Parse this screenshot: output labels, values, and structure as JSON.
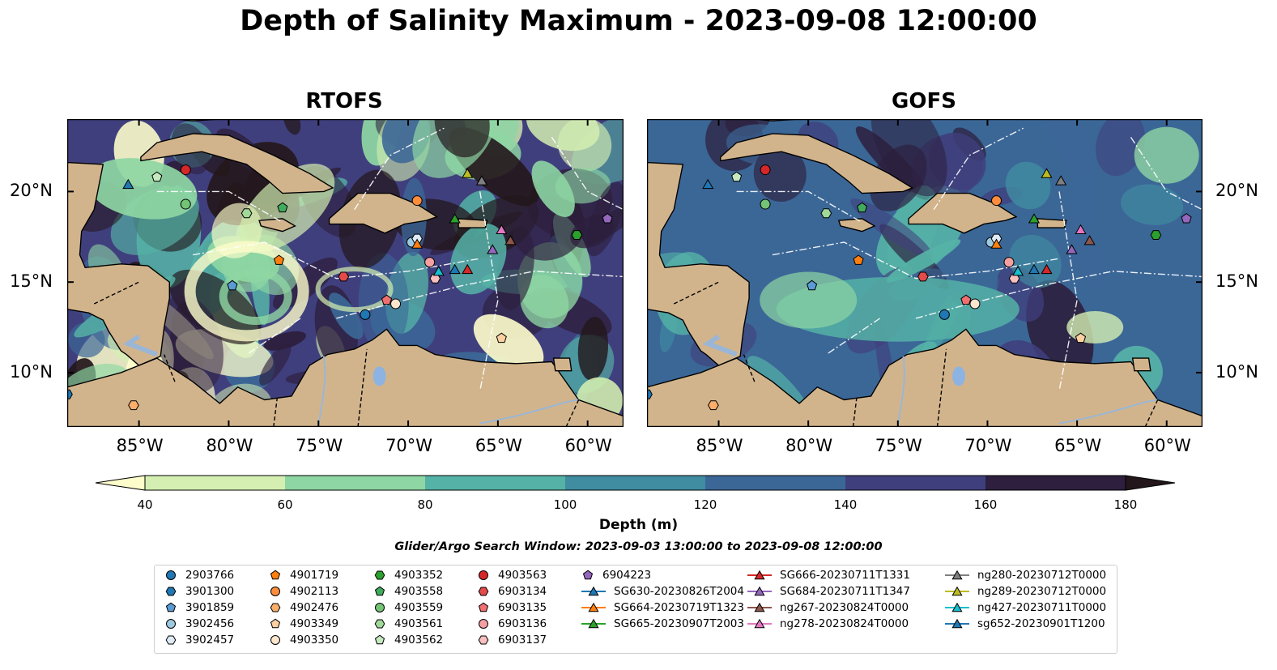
{
  "title": "Depth of Salinity Maximum - 2023-09-08 12:00:00",
  "panels": [
    {
      "title": "RTOFS"
    },
    {
      "title": "GOFS"
    }
  ],
  "axes": {
    "lon_ticks": [
      "85°W",
      "80°W",
      "75°W",
      "70°W",
      "65°W",
      "60°W"
    ],
    "lat_ticks": [
      "20°N",
      "15°N",
      "10°N"
    ],
    "lon_range": [
      -89,
      -58
    ],
    "lat_range": [
      7,
      24
    ]
  },
  "colorbar": {
    "label": "Depth (m)",
    "ticks": [
      "40",
      "60",
      "80",
      "100",
      "120",
      "140",
      "160",
      "180"
    ],
    "colors": [
      "#fdfdcb",
      "#d4efb1",
      "#8ed6a3",
      "#55b2a6",
      "#408ca1",
      "#3b6797",
      "#403f7d",
      "#2d1f3d",
      "#23171b"
    ],
    "extend": "both"
  },
  "search_window": "Glider/Argo Search Window: 2023-09-03 13:00:00 to 2023-09-08 12:00:00",
  "land_color": "#d2b48c",
  "legend": [
    {
      "label": "2903766",
      "marker": "circle",
      "color": "#1f77b4"
    },
    {
      "label": "3901300",
      "marker": "hexagon",
      "color": "#1f77b4"
    },
    {
      "label": "3901859",
      "marker": "pentagon",
      "color": "#5b9bd5"
    },
    {
      "label": "3902456",
      "marker": "circle",
      "color": "#9ecae1"
    },
    {
      "label": "3902457",
      "marker": "hexagon",
      "color": "#deebf7"
    },
    {
      "label": "4901719",
      "marker": "pentagon",
      "color": "#ff7f0e"
    },
    {
      "label": "4902113",
      "marker": "circle",
      "color": "#fd8d3c"
    },
    {
      "label": "4902476",
      "marker": "hexagon",
      "color": "#fdae6b"
    },
    {
      "label": "4903349",
      "marker": "pentagon",
      "color": "#fdd0a2"
    },
    {
      "label": "4903350",
      "marker": "circle",
      "color": "#fee6ce"
    },
    {
      "label": "4903352",
      "marker": "hexagon",
      "color": "#2ca02c"
    },
    {
      "label": "4903558",
      "marker": "pentagon",
      "color": "#41ab5d"
    },
    {
      "label": "4903559",
      "marker": "circle",
      "color": "#74c476"
    },
    {
      "label": "4903561",
      "marker": "hexagon",
      "color": "#a1d99b"
    },
    {
      "label": "4903562",
      "marker": "pentagon",
      "color": "#c7e9c0"
    },
    {
      "label": "4903563",
      "marker": "circle",
      "color": "#d62728"
    },
    {
      "label": "6903134",
      "marker": "hexagon",
      "color": "#e34a4a"
    },
    {
      "label": "6903135",
      "marker": "pentagon",
      "color": "#f07070"
    },
    {
      "label": "6903136",
      "marker": "circle",
      "color": "#f4a0a0"
    },
    {
      "label": "6903137",
      "marker": "hexagon",
      "color": "#f8c0c0"
    },
    {
      "label": "6904223",
      "marker": "pentagon",
      "color": "#9467bd"
    },
    {
      "label": "SG630-20230826T2004",
      "marker": "triangle",
      "color": "#1f77b4"
    },
    {
      "label": "SG664-20230719T1323",
      "marker": "triangle",
      "color": "#ff7f0e"
    },
    {
      "label": "SG665-20230907T2003",
      "marker": "triangle",
      "color": "#2ca02c"
    },
    {
      "label": "SG666-20230711T1331",
      "marker": "triangle",
      "color": "#d62728"
    },
    {
      "label": "SG684-20230711T1347",
      "marker": "triangle",
      "color": "#9467bd"
    },
    {
      "label": "ng267-20230824T0000",
      "marker": "triangle",
      "color": "#8c564b"
    },
    {
      "label": "ng278-20230824T0000",
      "marker": "triangle",
      "color": "#e377c2"
    },
    {
      "label": "ng280-20230712T0000",
      "marker": "triangle",
      "color": "#7f7f7f"
    },
    {
      "label": "ng289-20230712T0000",
      "marker": "triangle",
      "color": "#bcbd22"
    },
    {
      "label": "ng427-20230711T0000",
      "marker": "triangle",
      "color": "#17becf"
    },
    {
      "label": "sg652-20230901T1200",
      "marker": "triangle",
      "color": "#1f77b4"
    }
  ],
  "observations": [
    {
      "id": "2903766",
      "lon": -72.4,
      "lat": 13.2
    },
    {
      "id": "3901300",
      "lon": -89.0,
      "lat": 8.8
    },
    {
      "id": "3901859",
      "lon": -79.8,
      "lat": 14.8
    },
    {
      "id": "3902456",
      "lon": -69.8,
      "lat": 17.2
    },
    {
      "id": "3902457",
      "lon": -69.5,
      "lat": 17.4
    },
    {
      "id": "4901719",
      "lon": -77.2,
      "lat": 16.2
    },
    {
      "id": "4902113",
      "lon": -69.5,
      "lat": 19.5
    },
    {
      "id": "4902476",
      "lon": -85.3,
      "lat": 8.2
    },
    {
      "id": "4903349",
      "lon": -64.8,
      "lat": 11.9
    },
    {
      "id": "4903350",
      "lon": -70.7,
      "lat": 13.8
    },
    {
      "id": "4903352",
      "lon": -60.6,
      "lat": 17.6
    },
    {
      "id": "4903558",
      "lon": -77.0,
      "lat": 19.1
    },
    {
      "id": "4903559",
      "lon": -82.4,
      "lat": 19.3
    },
    {
      "id": "4903561",
      "lon": -79.0,
      "lat": 18.8
    },
    {
      "id": "4903562",
      "lon": -84.0,
      "lat": 20.8
    },
    {
      "id": "4903563",
      "lon": -82.4,
      "lat": 21.2
    },
    {
      "id": "6903134",
      "lon": -73.6,
      "lat": 15.3
    },
    {
      "id": "6903135",
      "lon": -71.2,
      "lat": 14.0
    },
    {
      "id": "6903136",
      "lon": -68.8,
      "lat": 16.1
    },
    {
      "id": "6903137",
      "lon": -68.5,
      "lat": 15.2
    },
    {
      "id": "6904223",
      "lon": -58.9,
      "lat": 18.5
    },
    {
      "id": "SG630-20230826T2004",
      "lon": -85.6,
      "lat": 20.4
    },
    {
      "id": "SG664-20230719T1323",
      "lon": -69.5,
      "lat": 17.1
    },
    {
      "id": "SG665-20230907T2003",
      "lon": -67.4,
      "lat": 18.5
    },
    {
      "id": "SG666-20230711T1331",
      "lon": -66.7,
      "lat": 15.7
    },
    {
      "id": "SG684-20230711T1347",
      "lon": -65.3,
      "lat": 16.8
    },
    {
      "id": "ng267-20230824T0000",
      "lon": -64.3,
      "lat": 17.3
    },
    {
      "id": "ng278-20230824T0000",
      "lon": -64.8,
      "lat": 17.9
    },
    {
      "id": "ng280-20230712T0000",
      "lon": -65.9,
      "lat": 20.6
    },
    {
      "id": "ng289-20230712T0000",
      "lon": -66.7,
      "lat": 21.0
    },
    {
      "id": "ng427-20230711T0000",
      "lon": -68.3,
      "lat": 15.6
    },
    {
      "id": "sg652-20230901T1200",
      "lon": -67.4,
      "lat": 15.7
    }
  ]
}
